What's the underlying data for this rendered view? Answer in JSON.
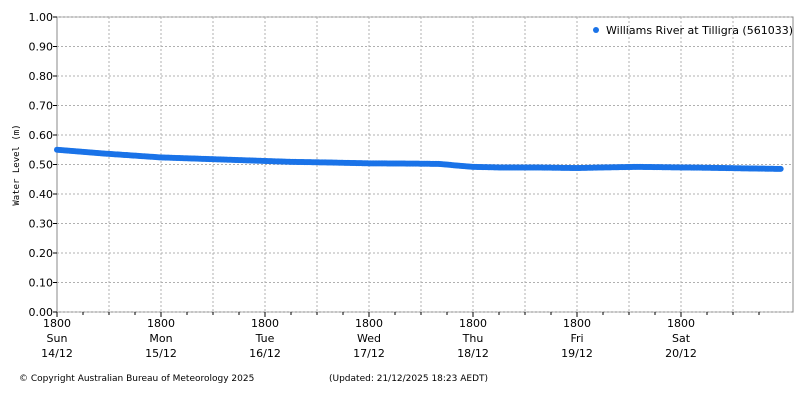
{
  "chart_data": {
    "type": "scatter",
    "title": "",
    "ylabel": "Water Level (m)",
    "xlabel": "",
    "ylim": [
      0,
      1.0
    ],
    "yticks": [
      "0.00",
      "0.10",
      "0.20",
      "0.30",
      "0.40",
      "0.50",
      "0.60",
      "0.70",
      "0.80",
      "0.90",
      "1.00"
    ],
    "x_range": [
      "2025-12-14 18:00",
      "2025-12-21 17:00"
    ],
    "xticks": [
      {
        "time": "1800",
        "day": "Sun",
        "date": "14/12"
      },
      {
        "time": "1800",
        "day": "Mon",
        "date": "15/12"
      },
      {
        "time": "1800",
        "day": "Tue",
        "date": "16/12"
      },
      {
        "time": "1800",
        "day": "Wed",
        "date": "17/12"
      },
      {
        "time": "1800",
        "day": "Thu",
        "date": "18/12"
      },
      {
        "time": "1800",
        "day": "Fri",
        "date": "19/12"
      },
      {
        "time": "1800",
        "day": "Sat",
        "date": "20/12"
      }
    ],
    "grid": true,
    "legend_position": "top-right",
    "series": [
      {
        "name": "Williams River at Tilligra (561033)",
        "color": "#1a73e8",
        "x": [
          "2025-12-14 18:00",
          "2025-12-14 23:00",
          "2025-12-15 04:00",
          "2025-12-15 10:00",
          "2025-12-15 18:00",
          "2025-12-16 00:00",
          "2025-12-16 08:00",
          "2025-12-16 18:00",
          "2025-12-17 00:00",
          "2025-12-17 08:00",
          "2025-12-17 18:00",
          "2025-12-18 04:00",
          "2025-12-18 10:00",
          "2025-12-18 18:00",
          "2025-12-19 00:00",
          "2025-12-19 08:00",
          "2025-12-19 18:00",
          "2025-12-20 00:00",
          "2025-12-20 08:00",
          "2025-12-20 18:00",
          "2025-12-21 00:00",
          "2025-12-21 08:00",
          "2025-12-21 17:00"
        ],
        "y": [
          0.55,
          0.544,
          0.538,
          0.532,
          0.524,
          0.521,
          0.517,
          0.512,
          0.509,
          0.507,
          0.504,
          0.503,
          0.502,
          0.492,
          0.49,
          0.49,
          0.488,
          0.49,
          0.492,
          0.49,
          0.489,
          0.487,
          0.485
        ]
      }
    ]
  },
  "footer": {
    "copyright": "© Copyright Australian Bureau of Meteorology 2025",
    "updated": "(Updated: 21/12/2025 18:23 AEDT)"
  }
}
